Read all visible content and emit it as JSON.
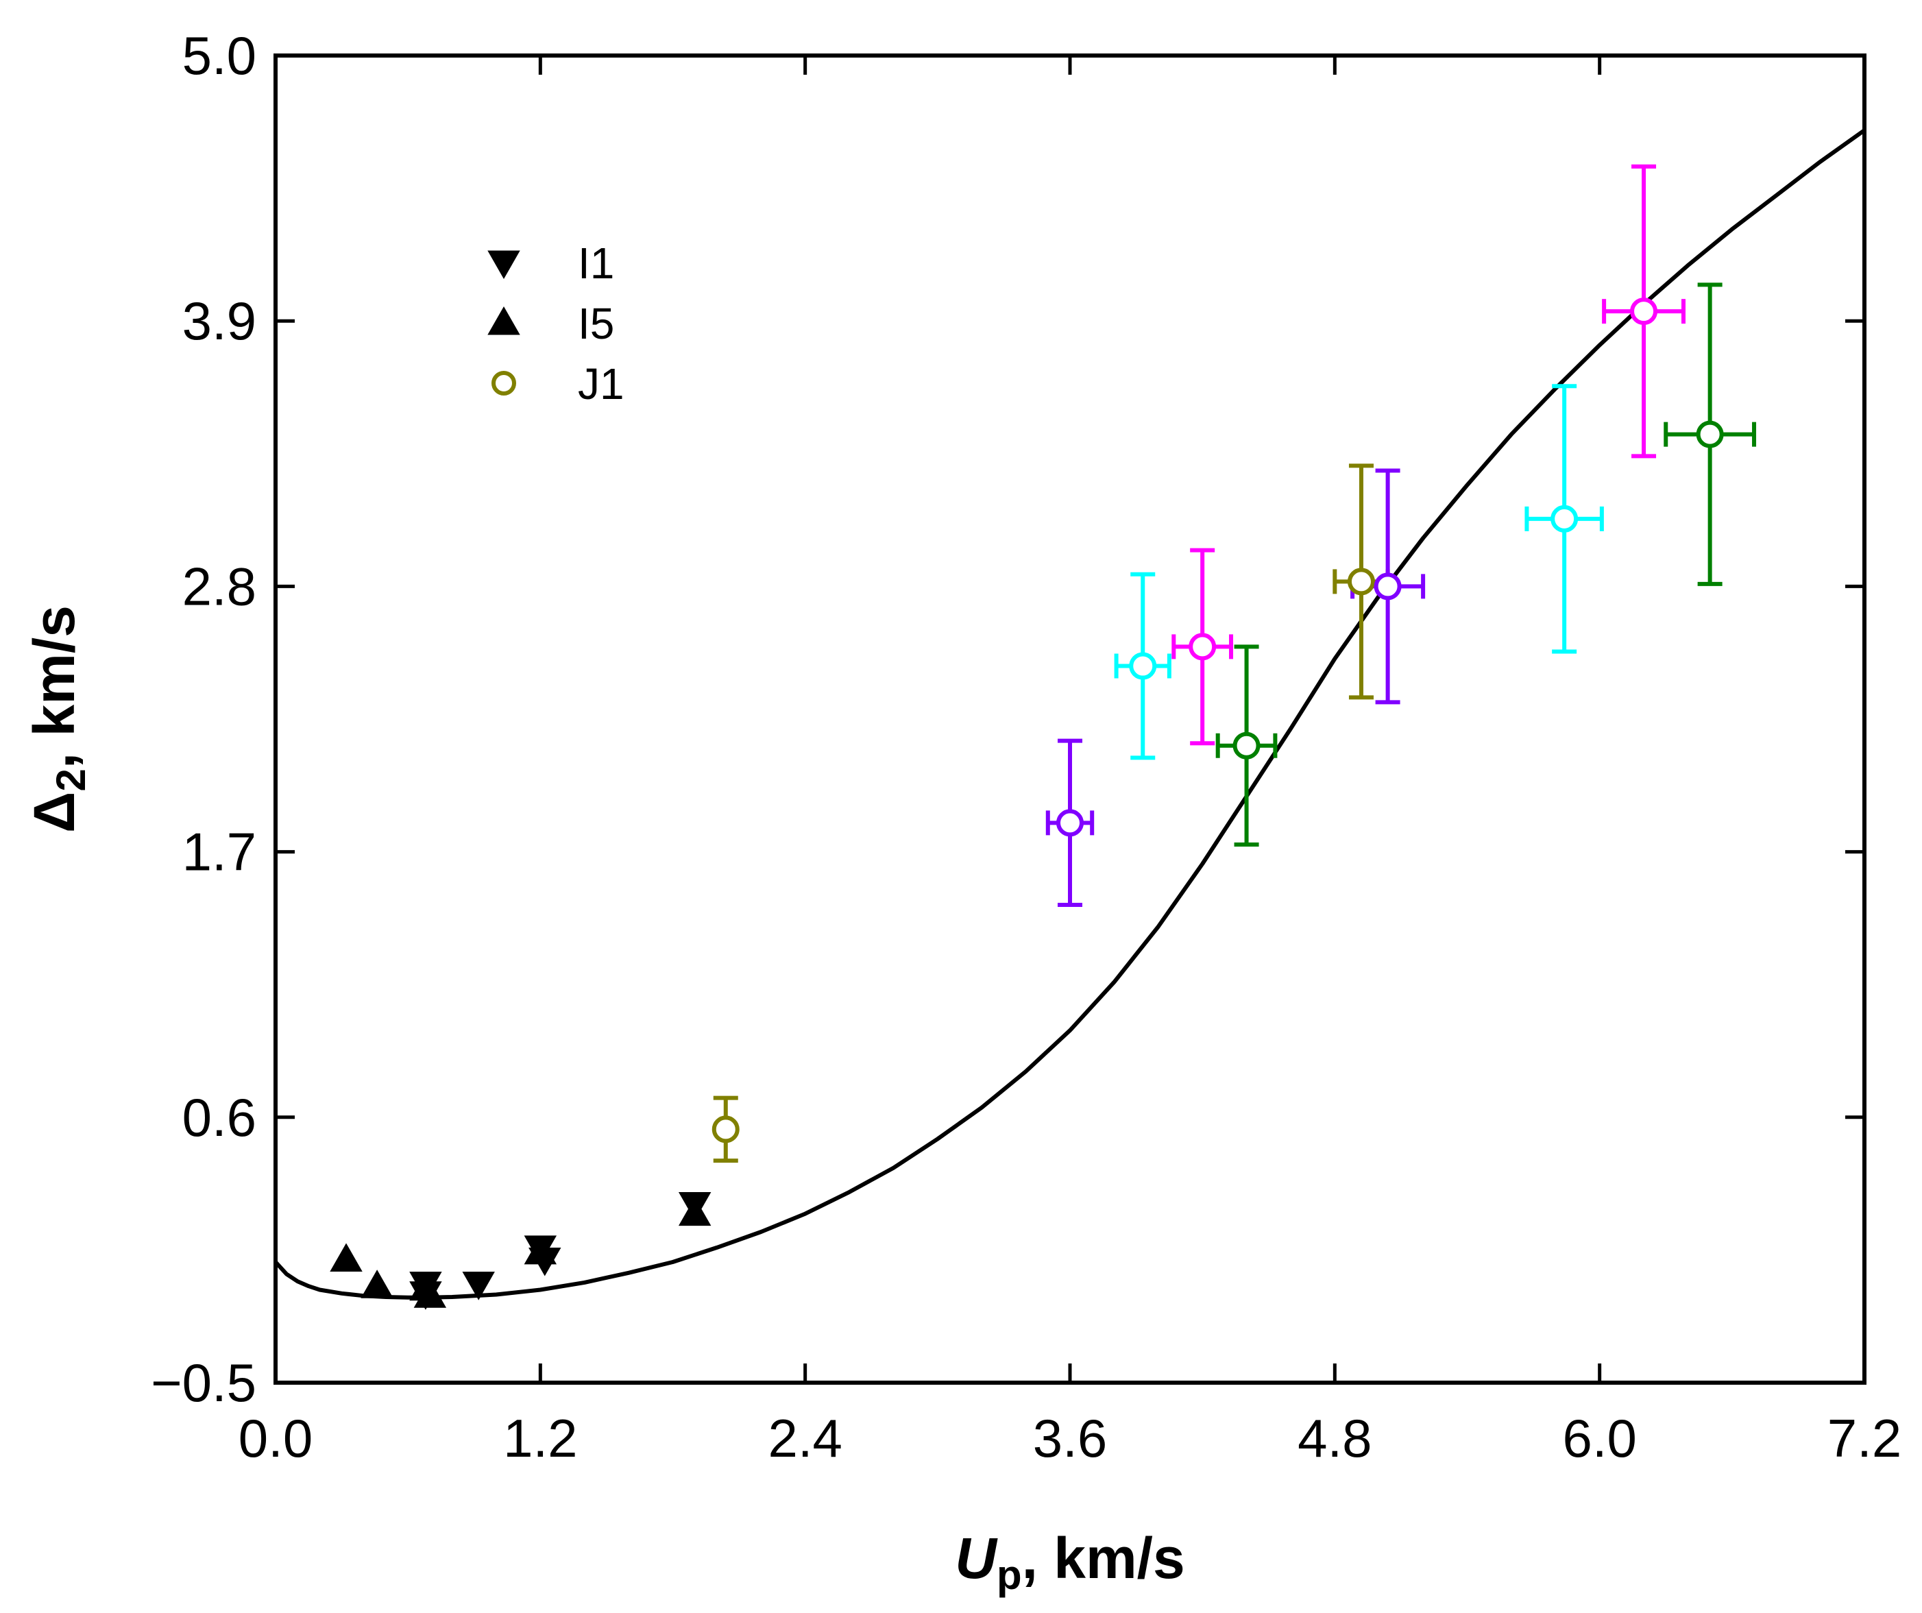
{
  "chart_data": {
    "type": "scatter",
    "title": "",
    "xlabel": {
      "main": "U",
      "sub": "p",
      "suffix": ", km/s"
    },
    "ylabel": {
      "main": "Δ",
      "sub": "2",
      "suffix": ", km/s"
    },
    "xlim": [
      0.0,
      7.2
    ],
    "ylim": [
      -0.5,
      5.0
    ],
    "xticks": [
      0.0,
      1.2,
      2.4,
      3.6,
      4.8,
      6.0,
      7.2
    ],
    "xtick_labels": [
      "0.0",
      "1.2",
      "2.4",
      "3.6",
      "4.8",
      "6.0",
      "7.2"
    ],
    "yticks": [
      -0.5,
      0.6,
      1.7,
      2.8,
      3.9,
      5.0
    ],
    "ytick_labels": [
      "−0.5",
      "0.6",
      "1.7",
      "2.8",
      "3.9",
      "5.0"
    ],
    "grid": false,
    "legend": {
      "position": "top-left",
      "entries": [
        {
          "label": "I1",
          "marker": "triangle-down",
          "color": "#000000"
        },
        {
          "label": "I5",
          "marker": "triangle-up",
          "color": "#000000"
        },
        {
          "label": "J1",
          "marker": "open-circle",
          "color": "#808000"
        }
      ]
    },
    "curve": {
      "name": "model",
      "color": "#000000",
      "x": [
        0.0,
        0.05,
        0.1,
        0.15,
        0.2,
        0.3,
        0.4,
        0.5,
        0.6,
        0.7,
        0.8,
        1.0,
        1.2,
        1.4,
        1.6,
        1.8,
        2.0,
        2.2,
        2.4,
        2.6,
        2.8,
        3.0,
        3.2,
        3.4,
        3.6,
        3.8,
        4.0,
        4.2,
        4.4,
        4.6,
        4.8,
        5.0,
        5.2,
        5.4,
        5.6,
        5.8,
        6.0,
        6.2,
        6.4,
        6.6,
        6.8,
        7.0,
        7.2
      ],
      "y": [
        0.0,
        -0.05,
        -0.08,
        -0.1,
        -0.115,
        -0.13,
        -0.14,
        -0.145,
        -0.147,
        -0.147,
        -0.145,
        -0.135,
        -0.115,
        -0.085,
        -0.045,
        0.0,
        0.06,
        0.125,
        0.2,
        0.29,
        0.39,
        0.51,
        0.64,
        0.79,
        0.96,
        1.16,
        1.39,
        1.65,
        1.93,
        2.21,
        2.5,
        2.76,
        3.0,
        3.22,
        3.43,
        3.62,
        3.8,
        3.97,
        4.13,
        4.28,
        4.42,
        4.56,
        4.69
      ]
    },
    "series": [
      {
        "name": "I1",
        "marker": "triangle-down",
        "color": "#000000",
        "points": [
          {
            "x": 0.68,
            "y": -0.09
          },
          {
            "x": 0.68,
            "y": -0.13
          },
          {
            "x": 0.92,
            "y": -0.09
          },
          {
            "x": 1.2,
            "y": 0.06
          },
          {
            "x": 1.22,
            "y": 0.01
          },
          {
            "x": 1.9,
            "y": 0.24
          }
        ]
      },
      {
        "name": "I5",
        "marker": "triangle-up",
        "color": "#000000",
        "points": [
          {
            "x": 0.32,
            "y": 0.01
          },
          {
            "x": 0.46,
            "y": -0.1
          },
          {
            "x": 0.68,
            "y": -0.11
          },
          {
            "x": 0.7,
            "y": -0.14
          },
          {
            "x": 1.2,
            "y": 0.04
          },
          {
            "x": 1.9,
            "y": 0.2
          }
        ]
      },
      {
        "name": "J1",
        "marker": "open-circle",
        "color": "#808000",
        "points": [
          {
            "x": 2.04,
            "y": 0.55,
            "yerr": 0.13,
            "xerr": 0
          },
          {
            "x": 4.92,
            "y": 2.82,
            "yerr": 0.48,
            "xerr": 0.12
          }
        ]
      },
      {
        "name": "",
        "marker": "open-circle",
        "color": "#8000ff",
        "points": [
          {
            "x": 3.6,
            "y": 1.82,
            "yerr": 0.34,
            "xerr": 0.1
          },
          {
            "x": 5.04,
            "y": 2.8,
            "yerr": 0.48,
            "xerr": 0.16
          }
        ]
      },
      {
        "name": "",
        "marker": "open-circle",
        "color": "#00ffff",
        "points": [
          {
            "x": 3.93,
            "y": 2.47,
            "yerr": 0.38,
            "xerr": 0.12
          },
          {
            "x": 5.84,
            "y": 3.08,
            "yerr": 0.55,
            "xerr": 0.17
          }
        ]
      },
      {
        "name": "",
        "marker": "open-circle",
        "color": "#ff00ff",
        "points": [
          {
            "x": 4.2,
            "y": 2.55,
            "yerr": 0.4,
            "xerr": 0.13
          },
          {
            "x": 6.2,
            "y": 3.94,
            "yerr": 0.6,
            "xerr": 0.18
          }
        ]
      },
      {
        "name": "",
        "marker": "open-circle",
        "color": "#008000",
        "points": [
          {
            "x": 4.4,
            "y": 2.14,
            "yerr": 0.41,
            "xerr": 0.13
          },
          {
            "x": 6.5,
            "y": 3.43,
            "yerr": 0.62,
            "xerr": 0.2
          }
        ]
      }
    ]
  }
}
